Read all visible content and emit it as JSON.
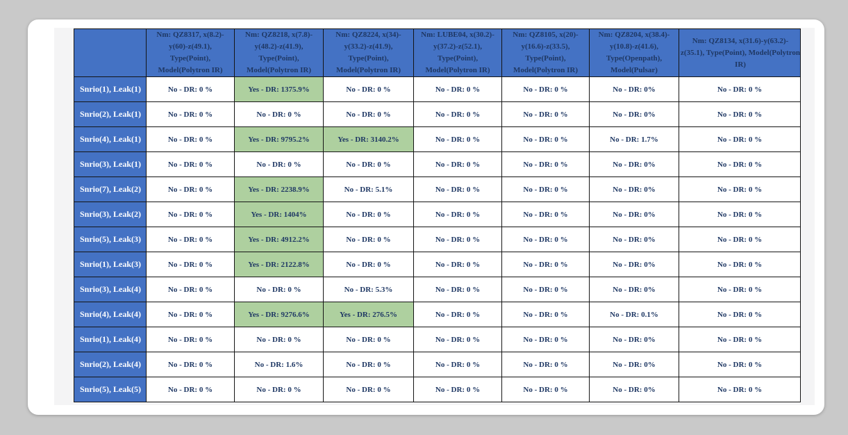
{
  "colors": {
    "page_background": "#c9c9c9",
    "card_background": "#ffffff",
    "panel_background": "#f4f4f5",
    "header_blue": "#4472c4",
    "highlight_green": "#aed09f",
    "header_text": "#1f3864",
    "cell_text": "#1f3864",
    "row_label_text": "#ffffff",
    "grid_border": "#141414"
  },
  "table": {
    "corner_label": "",
    "columns": [
      "Nm: QZ8317, x(8.2)-y(60)-z(49.1), Type(Point), Model(Polytron IR)",
      "Nm: QZ8218, x(7.8)-y(48.2)-z(41.9), Type(Point), Model(Polytron IR)",
      "Nm: QZ8224, x(34)-y(33.2)-z(41.9), Type(Point), Model(Polytron IR)",
      "Nm: LUBE04, x(30.2)-y(37.2)-z(52.1), Type(Point), Model(Polytron IR)",
      "Nm: QZ8105, x(20)-y(16.6)-z(33.5), Type(Point), Model(Polytron IR)",
      "Nm: QZ8204, x(38.4)-y(10.8)-z(41.6), Type(Openpath), Model(Pulsar)",
      "Nm: QZ8134, x(31.6)-y(63.2)-z(35.1), Type(Point), Model(Polytron IR)"
    ],
    "rows": [
      {
        "label": "Snrio(1), Leak(1)",
        "cells": [
          {
            "text": "No - DR: 0 %",
            "green": false
          },
          {
            "text": "Yes - DR: 1375.9%",
            "green": true
          },
          {
            "text": "No - DR: 0 %",
            "green": false
          },
          {
            "text": "No - DR: 0 %",
            "green": false
          },
          {
            "text": "No - DR: 0 %",
            "green": false
          },
          {
            "text": "No - DR: 0%",
            "green": false
          },
          {
            "text": "No - DR: 0 %",
            "green": false
          }
        ]
      },
      {
        "label": "Snrio(2), Leak(1)",
        "cells": [
          {
            "text": "No - DR: 0 %",
            "green": false
          },
          {
            "text": "No - DR: 0 %",
            "green": false
          },
          {
            "text": "No - DR: 0 %",
            "green": false
          },
          {
            "text": "No - DR: 0 %",
            "green": false
          },
          {
            "text": "No - DR: 0 %",
            "green": false
          },
          {
            "text": "No - DR: 0%",
            "green": false
          },
          {
            "text": "No - DR: 0 %",
            "green": false
          }
        ]
      },
      {
        "label": "Snrio(4), Leak(1)",
        "cells": [
          {
            "text": "No - DR: 0 %",
            "green": false
          },
          {
            "text": "Yes - DR: 9795.2%",
            "green": true
          },
          {
            "text": "Yes - DR: 3140.2%",
            "green": true
          },
          {
            "text": "No - DR: 0 %",
            "green": false
          },
          {
            "text": "No - DR: 0 %",
            "green": false
          },
          {
            "text": "No - DR: 1.7%",
            "green": false
          },
          {
            "text": "No - DR: 0 %",
            "green": false
          }
        ]
      },
      {
        "label": "Snrio(3), Leak(1)",
        "cells": [
          {
            "text": "No - DR: 0 %",
            "green": false
          },
          {
            "text": "No - DR: 0 %",
            "green": false
          },
          {
            "text": "No - DR: 0 %",
            "green": false
          },
          {
            "text": "No - DR: 0 %",
            "green": false
          },
          {
            "text": "No - DR: 0 %",
            "green": false
          },
          {
            "text": "No - DR: 0%",
            "green": false
          },
          {
            "text": "No - DR: 0 %",
            "green": false
          }
        ]
      },
      {
        "label": "Snrio(7), Leak(2)",
        "cells": [
          {
            "text": "No - DR: 0 %",
            "green": false
          },
          {
            "text": "Yes - DR: 2238.9%",
            "green": true
          },
          {
            "text": "No - DR: 5.1%",
            "green": false
          },
          {
            "text": "No - DR: 0 %",
            "green": false
          },
          {
            "text": "No - DR: 0 %",
            "green": false
          },
          {
            "text": "No - DR: 0%",
            "green": false
          },
          {
            "text": "No - DR: 0 %",
            "green": false
          }
        ]
      },
      {
        "label": "Snrio(3), Leak(2)",
        "cells": [
          {
            "text": "No - DR: 0 %",
            "green": false
          },
          {
            "text": "Yes - DR: 1404%",
            "green": true
          },
          {
            "text": "No - DR: 0 %",
            "green": false
          },
          {
            "text": "No - DR: 0 %",
            "green": false
          },
          {
            "text": "No - DR: 0 %",
            "green": false
          },
          {
            "text": "No - DR: 0%",
            "green": false
          },
          {
            "text": "No - DR: 0 %",
            "green": false
          }
        ]
      },
      {
        "label": "Snrio(5), Leak(3)",
        "cells": [
          {
            "text": "No - DR: 0 %",
            "green": false
          },
          {
            "text": "Yes - DR: 4912.2%",
            "green": true
          },
          {
            "text": "No - DR: 0 %",
            "green": false
          },
          {
            "text": "No - DR: 0 %",
            "green": false
          },
          {
            "text": "No - DR: 0 %",
            "green": false
          },
          {
            "text": "No - DR: 0%",
            "green": false
          },
          {
            "text": "No - DR: 0 %",
            "green": false
          }
        ]
      },
      {
        "label": "Snrio(1), Leak(3)",
        "cells": [
          {
            "text": "No - DR: 0 %",
            "green": false
          },
          {
            "text": "Yes - DR: 2122.8%",
            "green": true
          },
          {
            "text": "No - DR: 0 %",
            "green": false
          },
          {
            "text": "No - DR: 0 %",
            "green": false
          },
          {
            "text": "No - DR: 0 %",
            "green": false
          },
          {
            "text": "No - DR: 0%",
            "green": false
          },
          {
            "text": "No - DR: 0 %",
            "green": false
          }
        ]
      },
      {
        "label": "Snrio(3), Leak(4)",
        "cells": [
          {
            "text": "No - DR: 0 %",
            "green": false
          },
          {
            "text": "No - DR: 0 %",
            "green": false
          },
          {
            "text": "No - DR: 5.3%",
            "green": false
          },
          {
            "text": "No - DR: 0 %",
            "green": false
          },
          {
            "text": "No - DR: 0 %",
            "green": false
          },
          {
            "text": "No - DR: 0%",
            "green": false
          },
          {
            "text": "No - DR: 0 %",
            "green": false
          }
        ]
      },
      {
        "label": "Snrio(4), Leak(4)",
        "cells": [
          {
            "text": "No - DR: 0 %",
            "green": false
          },
          {
            "text": "Yes - DR: 9276.6%",
            "green": true
          },
          {
            "text": "Yes - DR: 276.5%",
            "green": true
          },
          {
            "text": "No - DR: 0 %",
            "green": false
          },
          {
            "text": "No - DR: 0 %",
            "green": false
          },
          {
            "text": "No - DR: 0.1%",
            "green": false
          },
          {
            "text": "No - DR: 0 %",
            "green": false
          }
        ]
      },
      {
        "label": "Snrio(1), Leak(4)",
        "cells": [
          {
            "text": "No - DR: 0 %",
            "green": false
          },
          {
            "text": "No - DR: 0 %",
            "green": false
          },
          {
            "text": "No - DR: 0 %",
            "green": false
          },
          {
            "text": "No - DR: 0 %",
            "green": false
          },
          {
            "text": "No - DR: 0 %",
            "green": false
          },
          {
            "text": "No - DR: 0%",
            "green": false
          },
          {
            "text": "No - DR: 0 %",
            "green": false
          }
        ]
      },
      {
        "label": "Snrio(2), Leak(4)",
        "cells": [
          {
            "text": "No - DR: 0 %",
            "green": false
          },
          {
            "text": "No - DR: 1.6%",
            "green": false
          },
          {
            "text": "No - DR: 0 %",
            "green": false
          },
          {
            "text": "No - DR: 0 %",
            "green": false
          },
          {
            "text": "No - DR: 0 %",
            "green": false
          },
          {
            "text": "No - DR: 0%",
            "green": false
          },
          {
            "text": "No - DR: 0 %",
            "green": false
          }
        ]
      },
      {
        "label": "Snrio(5), Leak(5)",
        "cells": [
          {
            "text": "No - DR: 0 %",
            "green": false
          },
          {
            "text": "No - DR: 0 %",
            "green": false
          },
          {
            "text": "No - DR: 0 %",
            "green": false
          },
          {
            "text": "No - DR: 0 %",
            "green": false
          },
          {
            "text": "No - DR: 0 %",
            "green": false
          },
          {
            "text": "No - DR: 0%",
            "green": false
          },
          {
            "text": "No - DR: 0 %",
            "green": false
          }
        ]
      }
    ]
  }
}
